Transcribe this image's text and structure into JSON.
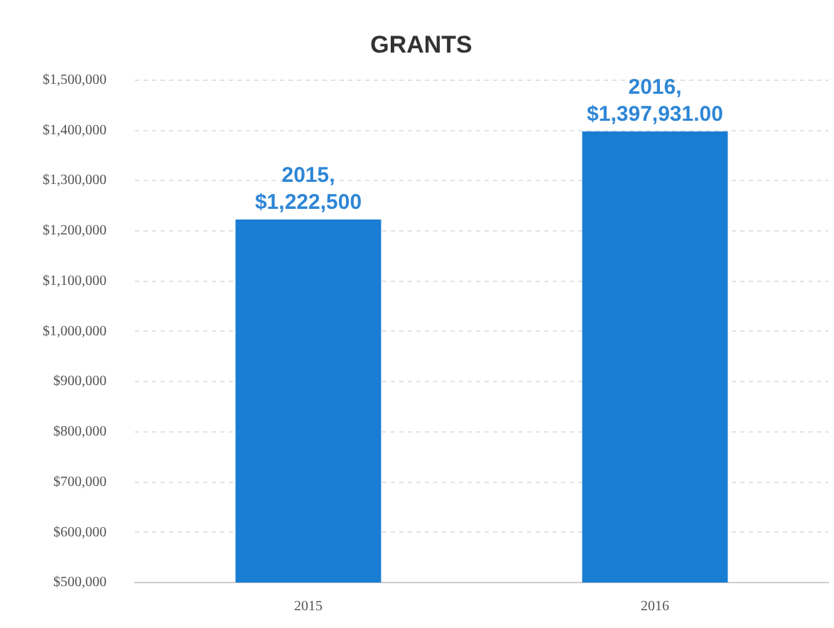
{
  "chart_data": {
    "type": "bar",
    "title": "GRANTS",
    "categories": [
      "2015",
      "2016"
    ],
    "values": [
      1222500,
      1397931
    ],
    "color": "#1a7dd4",
    "value_labels": [
      "2015,\n$1,222,500",
      "2016,\n$1,397,931.00"
    ],
    "ylim": [
      500000,
      1500000
    ],
    "yticks": [
      {
        "value": 500000,
        "label": "$500,000"
      },
      {
        "value": 600000,
        "label": "$600,000"
      },
      {
        "value": 700000,
        "label": "$700,000"
      },
      {
        "value": 800000,
        "label": "$800,000"
      },
      {
        "value": 900000,
        "label": "$900,000"
      },
      {
        "value": 1000000,
        "label": "$1,000,000"
      },
      {
        "value": 1100000,
        "label": "$1,100,000"
      },
      {
        "value": 1200000,
        "label": "$1,200,000"
      },
      {
        "value": 1300000,
        "label": "$1,300,000"
      },
      {
        "value": 1400000,
        "label": "$1,400,000"
      },
      {
        "value": 1500000,
        "label": "$1,500,000"
      }
    ],
    "grid": "y",
    "legend": false
  }
}
